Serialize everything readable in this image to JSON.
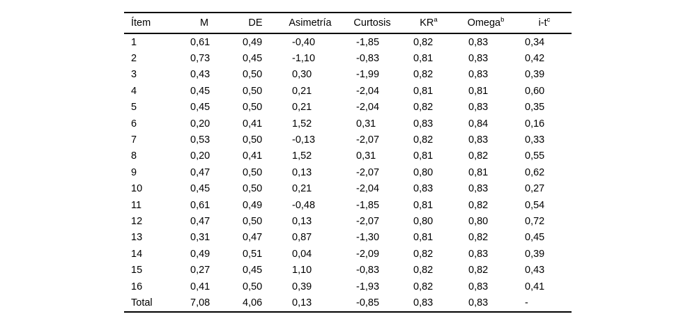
{
  "page": {
    "background_color": "#ffffff",
    "text_color": "#000000",
    "rule_color": "#000000"
  },
  "table": {
    "columns": [
      {
        "label": "Ítem",
        "sup": ""
      },
      {
        "label": "M",
        "sup": ""
      },
      {
        "label": "DE",
        "sup": ""
      },
      {
        "label": "Asimetría",
        "sup": ""
      },
      {
        "label": "Curtosis",
        "sup": ""
      },
      {
        "label": "KR",
        "sup": "a"
      },
      {
        "label": "Omega",
        "sup": "b"
      },
      {
        "label": "i-t",
        "sup": "c"
      }
    ],
    "rows": [
      [
        "1",
        "0,61",
        "0,49",
        "-0,40",
        "-1,85",
        "0,82",
        "0,83",
        "0,34"
      ],
      [
        "2",
        "0,73",
        "0,45",
        "-1,10",
        "-0,83",
        "0,81",
        "0,83",
        "0,42"
      ],
      [
        "3",
        "0,43",
        "0,50",
        "0,30",
        "-1,99",
        "0,82",
        "0,83",
        "0,39"
      ],
      [
        "4",
        "0,45",
        "0,50",
        "0,21",
        "-2,04",
        "0,81",
        "0,81",
        "0,60"
      ],
      [
        "5",
        "0,45",
        "0,50",
        "0,21",
        "-2,04",
        "0,82",
        "0,83",
        "0,35"
      ],
      [
        "6",
        "0,20",
        "0,41",
        "1,52",
        "0,31",
        "0,83",
        "0,84",
        "0,16"
      ],
      [
        "7",
        "0,53",
        "0,50",
        "-0,13",
        "-2,07",
        "0,82",
        "0,83",
        "0,33"
      ],
      [
        "8",
        "0,20",
        "0,41",
        "1,52",
        "0,31",
        "0,81",
        "0,82",
        "0,55"
      ],
      [
        "9",
        "0,47",
        "0,50",
        "0,13",
        "-2,07",
        "0,80",
        "0,81",
        "0,62"
      ],
      [
        "10",
        "0,45",
        "0,50",
        "0,21",
        "-2,04",
        "0,83",
        "0,83",
        "0,27"
      ],
      [
        "11",
        "0,61",
        "0,49",
        "-0,48",
        "-1,85",
        "0,81",
        "0,82",
        "0,54"
      ],
      [
        "12",
        "0,47",
        "0,50",
        "0,13",
        "-2,07",
        "0,80",
        "0,80",
        "0,72"
      ],
      [
        "13",
        "0,31",
        "0,47",
        "0,87",
        "-1,30",
        "0,81",
        "0,82",
        "0,45"
      ],
      [
        "14",
        "0,49",
        "0,51",
        "0,04",
        "-2,09",
        "0,82",
        "0,83",
        "0,39"
      ],
      [
        "15",
        "0,27",
        "0,45",
        "1,10",
        "-0,83",
        "0,82",
        "0,82",
        "0,43"
      ],
      [
        "16",
        "0,41",
        "0,50",
        "0,39",
        "-1,93",
        "0,82",
        "0,83",
        "0,41"
      ],
      [
        "Total",
        "7,08",
        "4,06",
        "0,13",
        "-0,85",
        "0,83",
        "0,83",
        "-"
      ]
    ]
  }
}
